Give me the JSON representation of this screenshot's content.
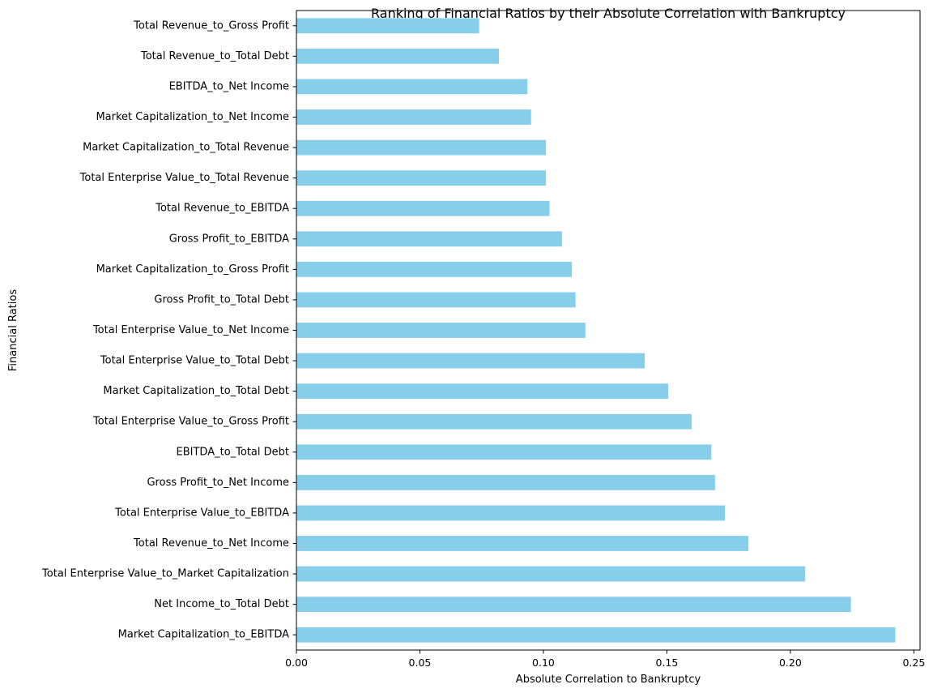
{
  "chart_data": {
    "type": "bar",
    "orientation": "horizontal",
    "title": "Ranking of Financial Ratios by their Absolute Correlation with Bankruptcy",
    "xlabel": "Absolute Correlation to Bankruptcy",
    "ylabel": "Financial Ratios",
    "xlim": [
      0.0,
      0.2525
    ],
    "xticks": [
      0.0,
      0.05,
      0.1,
      0.15,
      0.2,
      0.25
    ],
    "xtick_labels": [
      "0.00",
      "0.05",
      "0.10",
      "0.15",
      "0.20",
      "0.25"
    ],
    "bar_color": "#87ceeb",
    "grid": false,
    "categories": [
      "Total Revenue_to_Gross Profit",
      "Total Revenue_to_Total Debt",
      "EBITDA_to_Net Income",
      "Market Capitalization_to_Net Income",
      "Market Capitalization_to_Total Revenue",
      "Total Enterprise Value_to_Total Revenue",
      "Total Revenue_to_EBITDA",
      "Gross Profit_to_EBITDA",
      "Market Capitalization_to_Gross Profit",
      "Gross Profit_to_Total Debt",
      "Total Enterprise Value_to_Net Income",
      "Total Enterprise Value_to_Total Debt",
      "Market Capitalization_to_Total Debt",
      "Total Enterprise Value_to_Gross Profit",
      "EBITDA_to_Total Debt",
      "Gross Profit_to_Net Income",
      "Total Enterprise Value_to_EBITDA",
      "Total Revenue_to_Net Income",
      "Total Enterprise Value_to_Market Capitalization",
      "Net Income_to_Total Debt",
      "Market Capitalization_to_EBITDA"
    ],
    "values": [
      0.074,
      0.082,
      0.0935,
      0.095,
      0.101,
      0.101,
      0.1025,
      0.1075,
      0.1115,
      0.113,
      0.117,
      0.141,
      0.1505,
      0.16,
      0.168,
      0.1695,
      0.1735,
      0.183,
      0.206,
      0.2245,
      0.2425
    ]
  }
}
